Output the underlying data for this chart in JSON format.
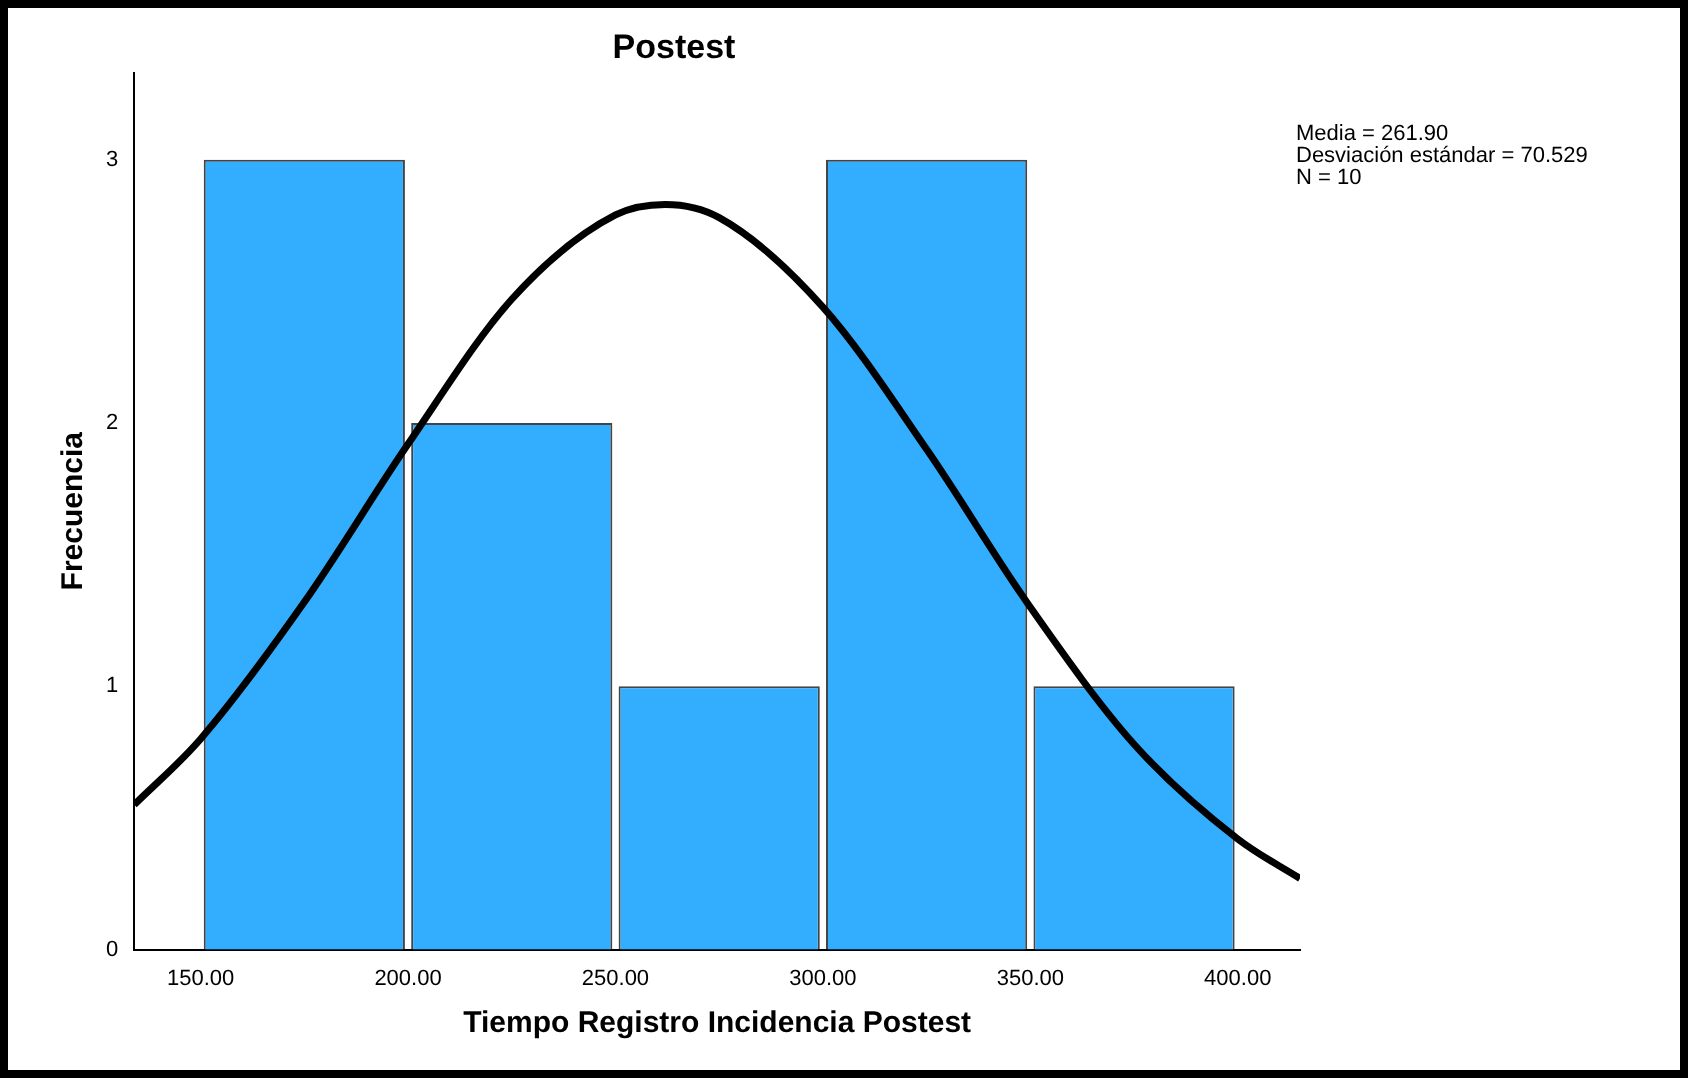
{
  "chart_data": {
    "type": "histogram",
    "title": "Postest",
    "xlabel": "Tiempo Registro Incidencia Postest",
    "ylabel": "Frecuencia",
    "bins": [
      150,
      200,
      250,
      300,
      350,
      400
    ],
    "values": [
      3,
      2,
      1,
      3,
      1
    ],
    "color": "#33adfe",
    "series": [
      {
        "type": "line",
        "color": "#000000",
        "x": [
          134,
          150,
          175,
          200,
          225,
          250,
          262,
          275,
          300,
          325,
          350,
          375,
          400,
          415
        ],
        "values": [
          0.55,
          0.8,
          1.32,
          1.92,
          2.47,
          2.79,
          2.83,
          2.78,
          2.44,
          1.9,
          1.3,
          0.78,
          0.42,
          0.27
        ]
      }
    ],
    "xlim": [
      134,
      415
    ],
    "xticks": [
      {
        "value": 150,
        "label": "150.00"
      },
      {
        "value": 200,
        "label": "200.00"
      },
      {
        "value": 250,
        "label": "250.00"
      },
      {
        "value": 300,
        "label": "300.00"
      },
      {
        "value": 350,
        "label": "350.00"
      },
      {
        "value": 400,
        "label": "400.00"
      }
    ],
    "ylim": [
      0,
      3.33
    ],
    "yticks": [
      0,
      1,
      2,
      3
    ],
    "grid": false,
    "legend": false,
    "annotations": [
      "Media = 261.90",
      "Desviación estándar = 70.529",
      "N = 10"
    ]
  }
}
